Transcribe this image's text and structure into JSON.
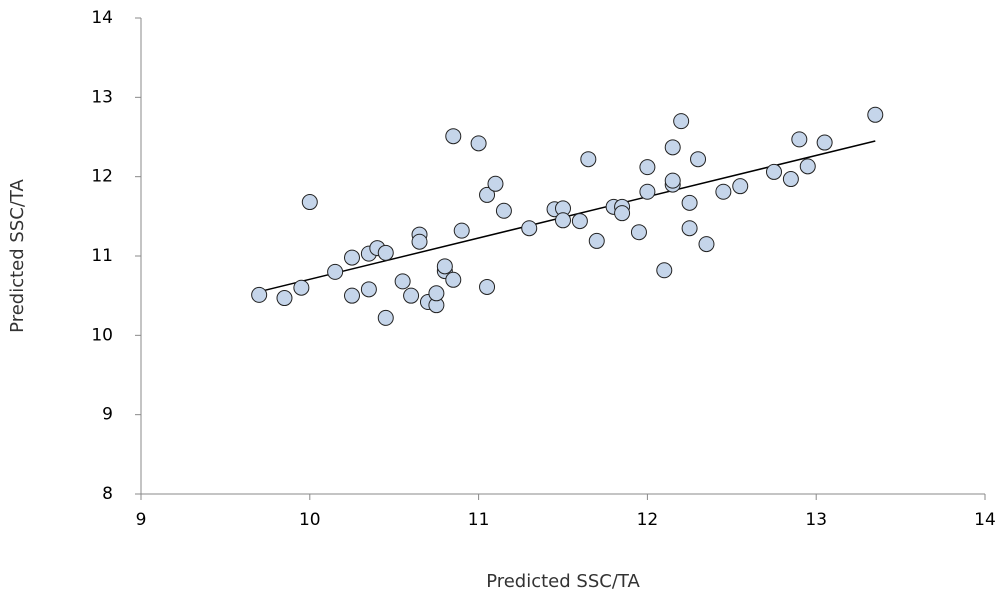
{
  "chart_data": {
    "type": "scatter",
    "x_label": "Predicted SSC/TA",
    "y_label": "Predicted SSC/TA",
    "xlim": [
      9,
      14
    ],
    "xticks": [
      9,
      10,
      11,
      12,
      13,
      14
    ],
    "ylim": [
      8,
      14
    ],
    "yticks": [
      8,
      9,
      10,
      11,
      12,
      13,
      14
    ],
    "grid": false,
    "color": "#c5d5ea",
    "x": [
      9.7,
      9.85,
      9.95,
      10.0,
      10.15,
      10.25,
      10.25,
      10.35,
      10.35,
      10.4,
      10.45,
      10.45,
      10.55,
      10.6,
      10.65,
      10.65,
      10.7,
      10.75,
      10.75,
      10.8,
      10.8,
      10.85,
      10.85,
      10.9,
      11.0,
      11.05,
      11.05,
      11.1,
      11.15,
      11.3,
      11.45,
      11.5,
      11.5,
      11.6,
      11.65,
      11.7,
      11.8,
      11.85,
      11.85,
      11.95,
      12.0,
      12.0,
      12.1,
      12.15,
      12.15,
      12.15,
      12.2,
      12.25,
      12.25,
      12.3,
      12.35,
      12.45,
      12.55,
      12.75,
      12.85,
      12.9,
      12.95,
      13.05,
      13.35
    ],
    "values": [
      10.51,
      10.47,
      10.6,
      11.68,
      10.8,
      10.98,
      10.5,
      11.03,
      10.58,
      11.1,
      11.04,
      10.22,
      10.68,
      10.5,
      11.27,
      11.18,
      10.42,
      10.38,
      10.53,
      10.81,
      10.87,
      10.7,
      12.51,
      11.32,
      12.42,
      10.61,
      11.77,
      11.91,
      11.57,
      11.35,
      11.59,
      11.6,
      11.45,
      11.44,
      12.22,
      11.19,
      11.62,
      11.62,
      11.54,
      11.3,
      12.12,
      11.81,
      10.82,
      12.37,
      11.9,
      11.95,
      12.7,
      11.35,
      11.67,
      12.22,
      11.15,
      11.81,
      11.88,
      12.06,
      11.97,
      12.47,
      12.13,
      12.43,
      12.78
    ],
    "trendline": {
      "x": [
        9.7,
        13.35
      ],
      "y": [
        10.55,
        12.45
      ],
      "color": "#000000"
    }
  }
}
